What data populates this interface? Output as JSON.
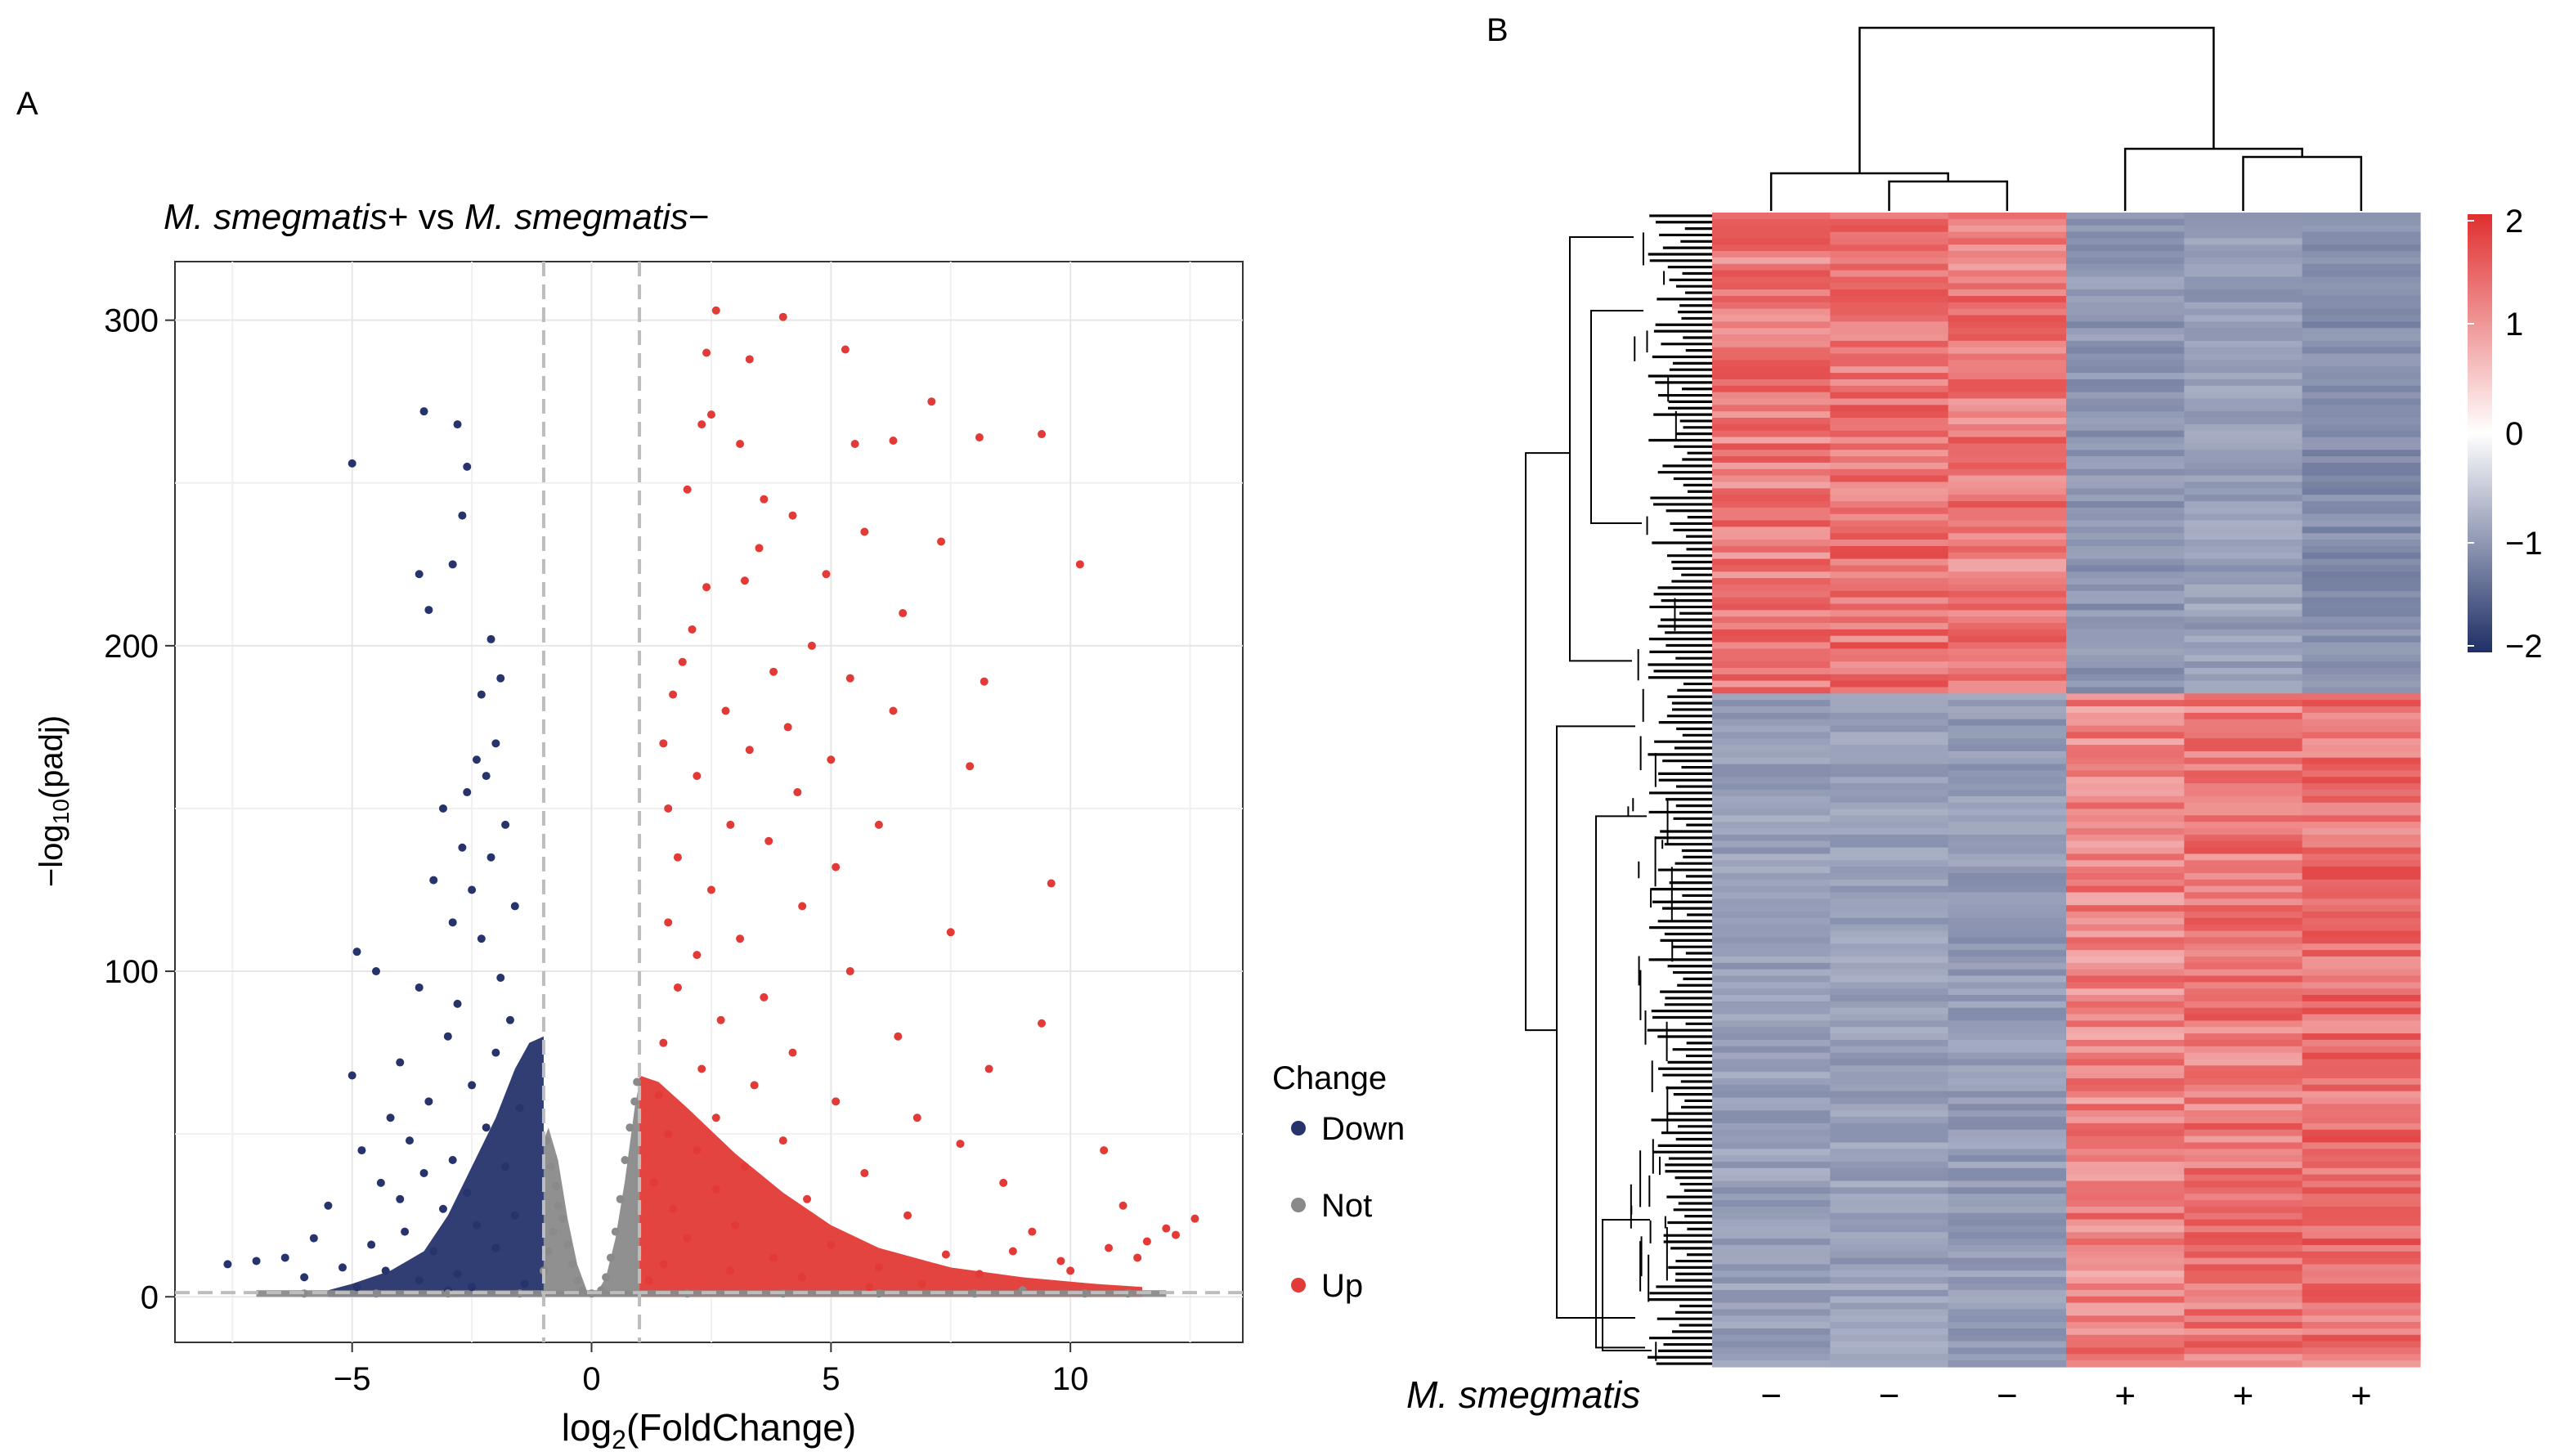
{
  "panels": {
    "a": {
      "label": "A",
      "title": {
        "italic1": "M. smegmatis",
        "plain1": "+ vs ",
        "italic2": "M. smegmatis",
        "plain2": "−"
      },
      "xlabel_main": "log",
      "xlabel_sub": "2",
      "xlabel_rest": "(FoldChange)",
      "ylabel_main": "−log",
      "ylabel_sub": "10",
      "ylabel_rest": "(padj)",
      "x_ticks": [
        "−5",
        "0",
        "5",
        "10"
      ],
      "y_ticks": [
        "0",
        "100",
        "200",
        "300"
      ],
      "legend_title": "Change",
      "legend_items": [
        "Down",
        "Not",
        "Up"
      ]
    },
    "b": {
      "label": "B",
      "row_annotation_italic": "M. smegmatis",
      "col_labels": [
        "−",
        "−",
        "−",
        "+",
        "+",
        "+"
      ],
      "scale_ticks": [
        "2",
        "1",
        "0",
        "−1",
        "−2"
      ]
    }
  },
  "colors": {
    "down": "#26346b",
    "not": "#8a8a8a",
    "up": "#e23a36",
    "heat_high": "#e02f2f",
    "heat_mid": "#ffffff",
    "heat_low": "#1f2f66",
    "threshold_line": "#bdbdbd"
  },
  "chart_data": [
    {
      "type": "scatter",
      "title": "M. smegmatis+ vs M. smegmatis−",
      "xlabel": "log2(FoldChange)",
      "ylabel": "−log10(padj)",
      "xlim": [
        -8.7,
        13.6
      ],
      "ylim": [
        -14,
        318
      ],
      "x_ticks": [
        -5,
        0,
        5,
        10
      ],
      "y_ticks": [
        0,
        100,
        200,
        300
      ],
      "grid": true,
      "legend": {
        "title": "Change",
        "placement": "right",
        "entries": [
          "Down",
          "Not",
          "Up"
        ]
      },
      "thresholds": {
        "log2fc": [
          -1,
          1
        ],
        "neg_log10_padj": 1.3
      },
      "series": [
        {
          "name": "Down",
          "points": [
            [
              -5.0,
              256
            ],
            [
              -3.5,
              272
            ],
            [
              -2.8,
              268
            ],
            [
              -2.6,
              255
            ],
            [
              -2.7,
              240
            ],
            [
              -3.6,
              222
            ],
            [
              -2.9,
              225
            ],
            [
              -3.4,
              211
            ],
            [
              -2.1,
              202
            ],
            [
              -1.9,
              190
            ],
            [
              -2.3,
              185
            ],
            [
              -2.0,
              170
            ],
            [
              -2.4,
              165
            ],
            [
              -2.2,
              160
            ],
            [
              -2.6,
              155
            ],
            [
              -3.1,
              150
            ],
            [
              -1.8,
              145
            ],
            [
              -2.7,
              138
            ],
            [
              -2.1,
              135
            ],
            [
              -3.3,
              128
            ],
            [
              -2.5,
              125
            ],
            [
              -1.6,
              120
            ],
            [
              -2.9,
              115
            ],
            [
              -2.3,
              110
            ],
            [
              -4.9,
              106
            ],
            [
              -4.5,
              100
            ],
            [
              -1.9,
              98
            ],
            [
              -3.6,
              95
            ],
            [
              -2.8,
              90
            ],
            [
              -1.7,
              85
            ],
            [
              -3.0,
              80
            ],
            [
              -2.0,
              75
            ],
            [
              -4.0,
              72
            ],
            [
              -5.0,
              68
            ],
            [
              -2.5,
              65
            ],
            [
              -3.4,
              60
            ],
            [
              -1.5,
              58
            ],
            [
              -4.2,
              55
            ],
            [
              -2.2,
              52
            ],
            [
              -3.8,
              48
            ],
            [
              -4.8,
              45
            ],
            [
              -2.9,
              42
            ],
            [
              -1.8,
              40
            ],
            [
              -3.5,
              38
            ],
            [
              -4.4,
              35
            ],
            [
              -2.6,
              32
            ],
            [
              -4.0,
              30
            ],
            [
              -5.5,
              28
            ],
            [
              -3.1,
              27
            ],
            [
              -1.6,
              25
            ],
            [
              -2.4,
              22
            ],
            [
              -3.9,
              20
            ],
            [
              -5.8,
              18
            ],
            [
              -4.6,
              16
            ],
            [
              -2.0,
              15
            ],
            [
              -3.3,
              14
            ],
            [
              -6.4,
              12
            ],
            [
              -7.0,
              11
            ],
            [
              -7.6,
              10
            ],
            [
              -5.2,
              9
            ],
            [
              -4.3,
              8
            ],
            [
              -2.8,
              7
            ],
            [
              -6.0,
              6
            ],
            [
              -3.6,
              5
            ],
            [
              -1.4,
              4
            ],
            [
              -4.9,
              3
            ],
            [
              -2.5,
              3
            ],
            [
              -3.0,
              2
            ]
          ]
        },
        {
          "name": "Not",
          "points": [
            [
              -1.0,
              8
            ],
            [
              -0.9,
              14
            ],
            [
              -0.8,
              20
            ],
            [
              -0.7,
              28
            ],
            [
              -0.6,
              24
            ],
            [
              -0.5,
              16
            ],
            [
              -0.4,
              10
            ],
            [
              -0.3,
              5
            ],
            [
              -0.2,
              2
            ],
            [
              0.0,
              1
            ],
            [
              0.2,
              2
            ],
            [
              0.3,
              6
            ],
            [
              0.4,
              12
            ],
            [
              0.5,
              20
            ],
            [
              0.6,
              30
            ],
            [
              0.7,
              42
            ],
            [
              0.8,
              52
            ],
            [
              0.9,
              60
            ],
            [
              0.95,
              66
            ],
            [
              -0.95,
              48
            ],
            [
              -0.85,
              40
            ],
            [
              -0.75,
              34
            ],
            [
              -1.5,
              1
            ],
            [
              -3.0,
              1
            ],
            [
              -4.5,
              1
            ],
            [
              -6.0,
              1
            ],
            [
              2.0,
              1
            ],
            [
              4.0,
              1
            ],
            [
              6.0,
              1
            ],
            [
              8.0,
              1
            ],
            [
              9.0,
              2
            ],
            [
              10.3,
              1
            ],
            [
              11.2,
              1
            ]
          ]
        },
        {
          "name": "Up",
          "points": [
            [
              2.6,
              303
            ],
            [
              4.0,
              301
            ],
            [
              5.3,
              291
            ],
            [
              2.4,
              290
            ],
            [
              3.3,
              288
            ],
            [
              2.5,
              271
            ],
            [
              2.3,
              268
            ],
            [
              7.1,
              275
            ],
            [
              8.1,
              264
            ],
            [
              9.4,
              265
            ],
            [
              6.3,
              263
            ],
            [
              3.1,
              262
            ],
            [
              5.5,
              262
            ],
            [
              2.0,
              248
            ],
            [
              3.6,
              245
            ],
            [
              4.2,
              240
            ],
            [
              5.7,
              235
            ],
            [
              3.5,
              230
            ],
            [
              7.3,
              232
            ],
            [
              10.2,
              225
            ],
            [
              4.9,
              222
            ],
            [
              3.2,
              220
            ],
            [
              2.4,
              218
            ],
            [
              6.5,
              210
            ],
            [
              2.1,
              205
            ],
            [
              4.6,
              200
            ],
            [
              1.9,
              195
            ],
            [
              3.8,
              192
            ],
            [
              5.4,
              190
            ],
            [
              8.2,
              189
            ],
            [
              1.7,
              185
            ],
            [
              2.8,
              180
            ],
            [
              6.3,
              180
            ],
            [
              4.1,
              175
            ],
            [
              1.5,
              170
            ],
            [
              3.3,
              168
            ],
            [
              5.0,
              165
            ],
            [
              2.2,
              160
            ],
            [
              7.9,
              163
            ],
            [
              4.3,
              155
            ],
            [
              1.6,
              150
            ],
            [
              2.9,
              145
            ],
            [
              6.0,
              145
            ],
            [
              3.7,
              140
            ],
            [
              1.8,
              135
            ],
            [
              5.1,
              132
            ],
            [
              9.6,
              127
            ],
            [
              2.5,
              125
            ],
            [
              4.4,
              120
            ],
            [
              1.6,
              115
            ],
            [
              3.1,
              110
            ],
            [
              7.5,
              112
            ],
            [
              2.2,
              105
            ],
            [
              5.4,
              100
            ],
            [
              1.8,
              95
            ],
            [
              3.6,
              92
            ],
            [
              9.4,
              84
            ],
            [
              2.7,
              85
            ],
            [
              6.4,
              80
            ],
            [
              1.5,
              78
            ],
            [
              4.2,
              75
            ],
            [
              2.3,
              70
            ],
            [
              8.3,
              70
            ],
            [
              3.4,
              65
            ],
            [
              1.4,
              62
            ],
            [
              5.1,
              60
            ],
            [
              2.6,
              55
            ],
            [
              6.8,
              55
            ],
            [
              1.6,
              50
            ],
            [
              4.0,
              48
            ],
            [
              7.7,
              47
            ],
            [
              2.2,
              45
            ],
            [
              10.7,
              45
            ],
            [
              3.2,
              40
            ],
            [
              5.7,
              38
            ],
            [
              1.3,
              35
            ],
            [
              8.6,
              35
            ],
            [
              2.6,
              33
            ],
            [
              4.5,
              30
            ],
            [
              11.1,
              28
            ],
            [
              1.7,
              27
            ],
            [
              6.6,
              25
            ],
            [
              12.6,
              24
            ],
            [
              3.0,
              22
            ],
            [
              9.2,
              20
            ],
            [
              12.0,
              21
            ],
            [
              2.0,
              18
            ],
            [
              5.0,
              16
            ],
            [
              10.8,
              15
            ],
            [
              7.4,
              13
            ],
            [
              3.8,
              12
            ],
            [
              11.6,
              17
            ],
            [
              1.5,
              10
            ],
            [
              6.0,
              9
            ],
            [
              9.8,
              11
            ],
            [
              2.9,
              8
            ],
            [
              8.1,
              7
            ],
            [
              4.4,
              6
            ],
            [
              1.2,
              5
            ],
            [
              6.9,
              4
            ],
            [
              5.8,
              3
            ],
            [
              10.0,
              8
            ],
            [
              11.4,
              12
            ],
            [
              12.2,
              19
            ],
            [
              8.8,
              14
            ]
          ]
        }
      ]
    },
    {
      "type": "heatmap",
      "title": "",
      "columns": [
        "−",
        "−",
        "−",
        "+",
        "+",
        "+"
      ],
      "row_annotation": "M. smegmatis",
      "colorbar": {
        "min": -2,
        "max": 2,
        "ticks": [
          2,
          1,
          0,
          -1,
          -2
        ]
      },
      "clusters": [
        {
          "name": "cluster1",
          "row_fraction": 0.415,
          "means": [
            1.2,
            1.3,
            1.2,
            -0.9,
            -0.8,
            -1.0
          ]
        },
        {
          "name": "cluster2",
          "row_fraction": 0.585,
          "means": [
            -0.8,
            -0.8,
            -0.85,
            1.1,
            1.2,
            1.3
          ]
        }
      ],
      "column_dendrogram": true,
      "row_dendrogram": true
    }
  ]
}
